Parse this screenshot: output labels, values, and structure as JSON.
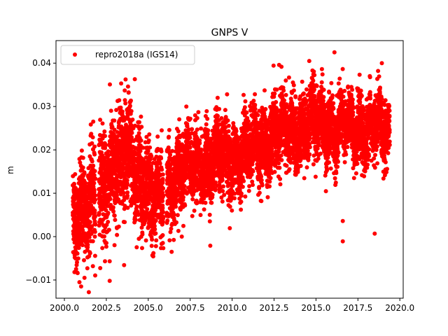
{
  "chart_data": {
    "type": "scatter",
    "title": "GNPS V",
    "xlabel": "",
    "ylabel": "m",
    "xlim": [
      1999.5,
      2020.2
    ],
    "ylim": [
      -0.0142,
      0.0452
    ],
    "x_ticks": [
      2000.0,
      2002.5,
      2005.0,
      2007.5,
      2010.0,
      2012.5,
      2015.0,
      2017.5,
      2020.0
    ],
    "x_tick_labels": [
      "2000.0",
      "2002.5",
      "2005.0",
      "2007.5",
      "2010.0",
      "2012.5",
      "2015.0",
      "2017.5",
      "2020.0"
    ],
    "y_ticks": [
      -0.01,
      0.0,
      0.01,
      0.02,
      0.03,
      0.04
    ],
    "y_tick_labels": [
      "−0.01",
      "0.00",
      "0.01",
      "0.02",
      "0.03",
      "0.04"
    ],
    "grid": false,
    "legend_position": "top-left",
    "series": [
      {
        "name": "repro2018a (IGS14)",
        "color": "#ff0000",
        "marker": "circle",
        "trend_knots": [
          [
            2000.5,
            0.006
          ],
          [
            2001.5,
            0.006
          ],
          [
            2002.2,
            0.012
          ],
          [
            2003.0,
            0.016
          ],
          [
            2003.8,
            0.019
          ],
          [
            2004.5,
            0.015
          ],
          [
            2005.2,
            0.007
          ],
          [
            2005.9,
            0.01
          ],
          [
            2006.5,
            0.014
          ],
          [
            2007.5,
            0.016
          ],
          [
            2008.5,
            0.017
          ],
          [
            2009.5,
            0.018
          ],
          [
            2010.5,
            0.019
          ],
          [
            2011.5,
            0.021
          ],
          [
            2012.5,
            0.023
          ],
          [
            2013.5,
            0.024
          ],
          [
            2014.5,
            0.026
          ],
          [
            2015.5,
            0.026
          ],
          [
            2016.3,
            0.025
          ],
          [
            2017.5,
            0.025
          ],
          [
            2018.5,
            0.025
          ],
          [
            2019.4,
            0.024
          ]
        ],
        "spread_knots": [
          [
            2000.5,
            0.005
          ],
          [
            2002.0,
            0.006
          ],
          [
            2004.0,
            0.006
          ],
          [
            2005.5,
            0.005
          ],
          [
            2007.0,
            0.004
          ],
          [
            2009.0,
            0.004
          ],
          [
            2011.0,
            0.004
          ],
          [
            2013.0,
            0.004
          ],
          [
            2015.0,
            0.004
          ],
          [
            2017.0,
            0.0035
          ],
          [
            2019.4,
            0.0035
          ]
        ],
        "points_per_year": 365,
        "gaps": [
          [
            2001.85,
            2002.05
          ],
          [
            2005.9,
            2006.1
          ]
        ],
        "outliers": [
          [
            2000.9,
            -0.0105
          ],
          [
            2001.0,
            -0.0115
          ],
          [
            2001.2,
            -0.0095
          ],
          [
            2001.7,
            -0.0068
          ],
          [
            2002.7,
            -0.0102
          ],
          [
            2002.7,
            -0.0057
          ],
          [
            2008.7,
            -0.0021
          ],
          [
            2007.0,
            0.0
          ],
          [
            2016.6,
            0.0036
          ],
          [
            2016.6,
            -0.0011
          ],
          [
            2018.5,
            0.0007
          ],
          [
            2016.1,
            0.0425
          ],
          [
            2014.6,
            0.0405
          ],
          [
            2012.8,
            0.0396
          ],
          [
            2004.2,
            0.0363
          ],
          [
            2003.6,
            0.0337
          ],
          [
            2009.7,
            0.0328
          ],
          [
            2005.8,
            0.0245
          ],
          [
            2013.2,
            0.036
          ],
          [
            2018.7,
            0.0382
          ]
        ]
      }
    ]
  }
}
